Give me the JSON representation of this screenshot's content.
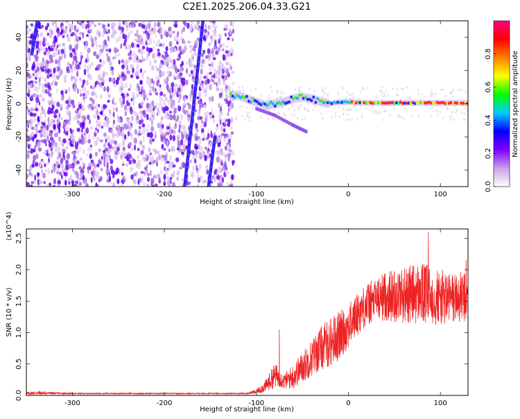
{
  "title": "C2E1.2025.206.04.33.G21",
  "chart_data": [
    {
      "type": "heatmap",
      "xlabel": "Height of straight line (km)",
      "ylabel": "Frequency (Hz)",
      "xlim": [
        -350,
        130
      ],
      "ylim": [
        -50,
        50
      ],
      "xticks": [
        -300,
        -200,
        -100,
        0,
        100
      ],
      "yticks": [
        -40,
        -20,
        0,
        20,
        40
      ],
      "colorbar": {
        "label": "Normalized spectral amplitude",
        "range": [
          0.0,
          1.0
        ],
        "ticks": [
          "0.0",
          "0.2",
          "0.4",
          "0.6",
          "0.8"
        ],
        "colors": [
          "#ffffff",
          "#c8a0e8",
          "#8000ff",
          "#0000ff",
          "#00ccff",
          "#00ff00",
          "#ffff00",
          "#ff8000",
          "#ff0000",
          "#ff0080"
        ]
      },
      "features": {
        "noise_region_km": [
          -350,
          -125
        ],
        "ridge_points": [
          [
            -128,
            5
          ],
          [
            -120,
            5
          ],
          [
            -110,
            3
          ],
          [
            -100,
            1
          ],
          [
            -90,
            -1
          ],
          [
            -80,
            0
          ],
          [
            -70,
            1
          ],
          [
            -60,
            3
          ],
          [
            -50,
            4
          ],
          [
            -40,
            3
          ],
          [
            -30,
            1
          ],
          [
            -20,
            0
          ],
          [
            -10,
            1
          ],
          [
            0,
            1
          ],
          [
            20,
            0.5
          ],
          [
            40,
            0.5
          ],
          [
            60,
            0.5
          ],
          [
            80,
            0.5
          ],
          [
            100,
            0.5
          ],
          [
            130,
            0.5
          ]
        ],
        "branch_points": [
          [
            -100,
            -3
          ],
          [
            -80,
            -7
          ],
          [
            -60,
            -13
          ],
          [
            -45,
            -17
          ]
        ],
        "streaks": [
          [
            [
              -178,
              -50
            ],
            [
              -158,
              50
            ]
          ],
          [
            [
              -344,
              30
            ],
            [
              -338,
              50
            ]
          ],
          [
            [
              -152,
              -50
            ],
            [
              -145,
              -20
            ]
          ]
        ]
      }
    },
    {
      "type": "line",
      "xlabel": "Height of straight line (km)",
      "ylabel": "SNR (10 * v/v)",
      "y_multiplier": "(x10^4)",
      "xlim": [
        -350,
        130
      ],
      "ylim": [
        0,
        2.65
      ],
      "xticks": [
        -300,
        -200,
        -100,
        0,
        100
      ],
      "yticks": [
        0.0,
        0.5,
        1.0,
        1.5,
        2.0,
        2.5
      ],
      "color": "#ee2222",
      "envelope": {
        "x": [
          -350,
          -340,
          -300,
          -200,
          -110,
          -100,
          -90,
          -80,
          -75,
          -70,
          -60,
          -50,
          -40,
          -30,
          -20,
          -10,
          0,
          10,
          20,
          30,
          40,
          60,
          80,
          100,
          130
        ],
        "mean": [
          0.03,
          0.04,
          0.03,
          0.03,
          0.03,
          0.06,
          0.15,
          0.32,
          0.28,
          0.22,
          0.3,
          0.45,
          0.6,
          0.75,
          0.85,
          0.95,
          1.1,
          1.3,
          1.45,
          1.52,
          1.58,
          1.6,
          1.62,
          1.55,
          1.55
        ],
        "amp": [
          0.02,
          0.03,
          0.01,
          0.01,
          0.01,
          0.04,
          0.1,
          0.2,
          0.15,
          0.12,
          0.2,
          0.25,
          0.3,
          0.35,
          0.4,
          0.4,
          0.35,
          0.35,
          0.35,
          0.35,
          0.4,
          0.45,
          0.5,
          0.45,
          0.4
        ]
      },
      "spikes": [
        [
          -75,
          1.05
        ],
        [
          87,
          2.6
        ],
        [
          70,
          2.07
        ],
        [
          30,
          1.75
        ],
        [
          128,
          2.15
        ]
      ]
    }
  ]
}
